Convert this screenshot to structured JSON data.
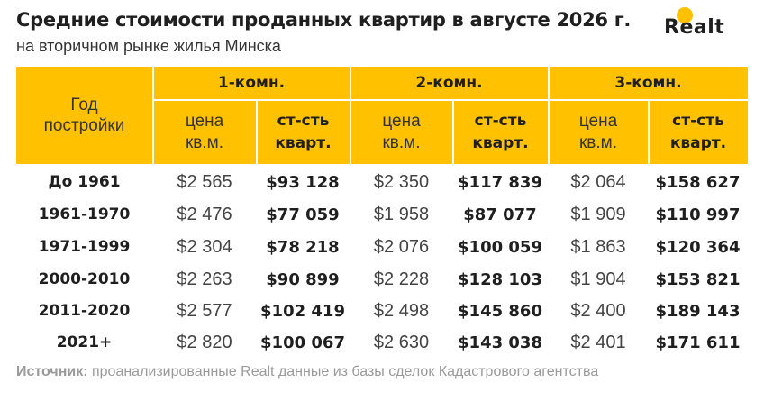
{
  "title": "Средние стоимости проданных квартир в августе 2026 г.",
  "subtitle": "на вторичном рынке жилья Минска",
  "logo": {
    "text": "Realt",
    "dot_color": "#FFC100"
  },
  "colors": {
    "header_bg": "#FFC100"
  },
  "table": {
    "year_header": "Год постройки",
    "rooms": [
      {
        "label": "1-комн.",
        "price_label": "цена кв.м.",
        "total_label": "ст-сть кварт."
      },
      {
        "label": "2-комн.",
        "price_label": "цена кв.м.",
        "total_label": "ст-сть кварт."
      },
      {
        "label": "3-комн.",
        "price_label": "цена кв.м.",
        "total_label": "ст-сть кварт."
      }
    ],
    "rows": [
      {
        "year": "До 1961",
        "cells": [
          "$2 565",
          "$93 128",
          "$2 350",
          "$117 839",
          "$2 064",
          "$158 627"
        ]
      },
      {
        "year": "1961-1970",
        "cells": [
          "$2 476",
          "$77 059",
          "$1 958",
          "$87 077",
          "$1 909",
          "$110 997"
        ]
      },
      {
        "year": "1971-1999",
        "cells": [
          "$2 304",
          "$78 218",
          "$2 076",
          "$100 059",
          "$1 863",
          "$120 364"
        ]
      },
      {
        "year": "2000-2010",
        "cells": [
          "$2 263",
          "$90 899",
          "$2 228",
          "$128 103",
          "$1 904",
          "$153 821"
        ]
      },
      {
        "year": "2011-2020",
        "cells": [
          "$2 577",
          "$102 419",
          "$2 498",
          "$145 860",
          "$2 400",
          "$189 143"
        ]
      },
      {
        "year": "2021+",
        "cells": [
          "$2 820",
          "$100 067",
          "$2 630",
          "$143 038",
          "$2 401",
          "$171 611"
        ]
      }
    ]
  },
  "source": {
    "label": "Источник:",
    "text": " проанализированные Realt данные из базы сделок Кадастрового агентства"
  }
}
